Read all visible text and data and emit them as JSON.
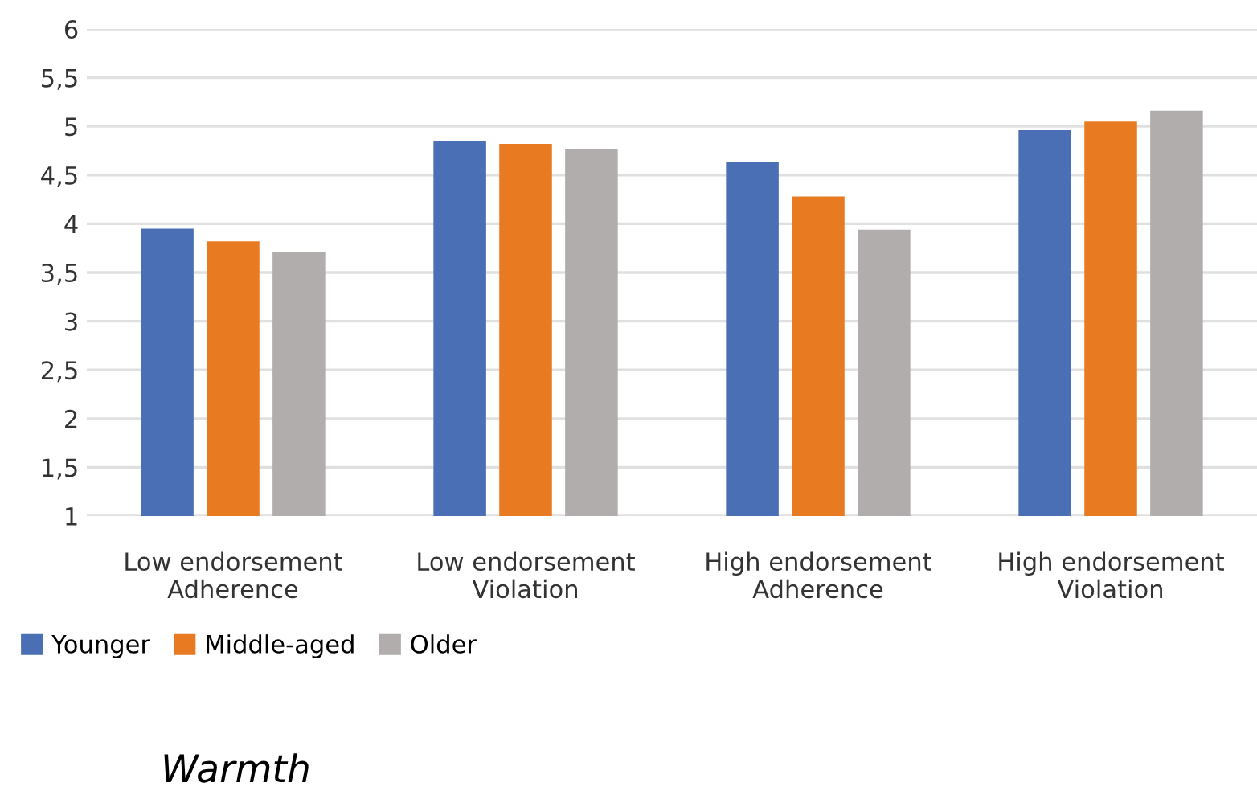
{
  "chart_data": {
    "type": "bar",
    "title": "Warmth",
    "categories": [
      "Low endorsement\nAdherence",
      "Low endorsement\nViolation",
      "High endorsement\nAdherence",
      "High endorsement\nViolation"
    ],
    "series": [
      {
        "name": "Younger",
        "color": "#4a6fb5",
        "values": [
          3.95,
          4.85,
          4.63,
          4.96
        ]
      },
      {
        "name": "Middle-aged",
        "color": "#e87a22",
        "values": [
          3.82,
          4.82,
          4.28,
          5.05
        ]
      },
      {
        "name": "Older",
        "color": "#b0adac",
        "values": [
          3.71,
          4.77,
          3.94,
          5.16
        ]
      }
    ],
    "ylim": [
      1,
      6
    ],
    "yticks": [
      1,
      {
        "value": 1.5,
        "label": "1,5"
      },
      2,
      {
        "value": 2.5,
        "label": "2,5"
      },
      3,
      {
        "value": 3.5,
        "label": "3,5"
      },
      4,
      {
        "value": 4.5,
        "label": "4,5"
      },
      5,
      {
        "value": 5.5,
        "label": "5,5"
      },
      6
    ],
    "grid": "y",
    "legend": "bottom left"
  }
}
